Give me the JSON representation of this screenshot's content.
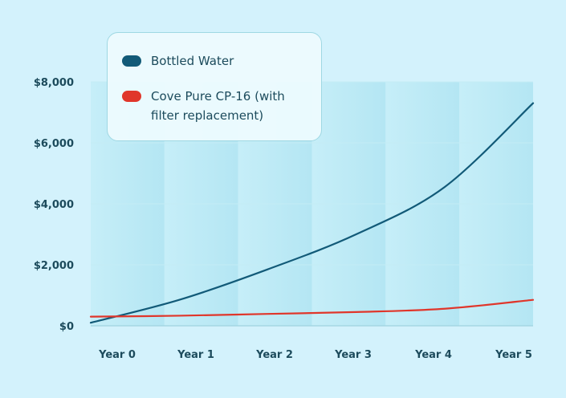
{
  "chart_data": {
    "type": "line",
    "x": [
      "Year 0",
      "Year 1",
      "Year 2",
      "Year 3",
      "Year 4",
      "Year 5"
    ],
    "yticks": [
      "$0",
      "$2,000",
      "$4,000",
      "$6,000",
      "$8,000"
    ],
    "ylim": [
      0,
      8000
    ],
    "grid": true,
    "legend_position": "top-left",
    "series": [
      {
        "name": "Bottled Water",
        "color": "#125a78",
        "values": [
          100,
          850,
          1850,
          3000,
          4550,
          7300
        ]
      },
      {
        "name": "Cove Pure CP-16 (with filter replacement)",
        "color": "#e0362b",
        "values": [
          300,
          330,
          390,
          450,
          560,
          850
        ]
      }
    ]
  }
}
